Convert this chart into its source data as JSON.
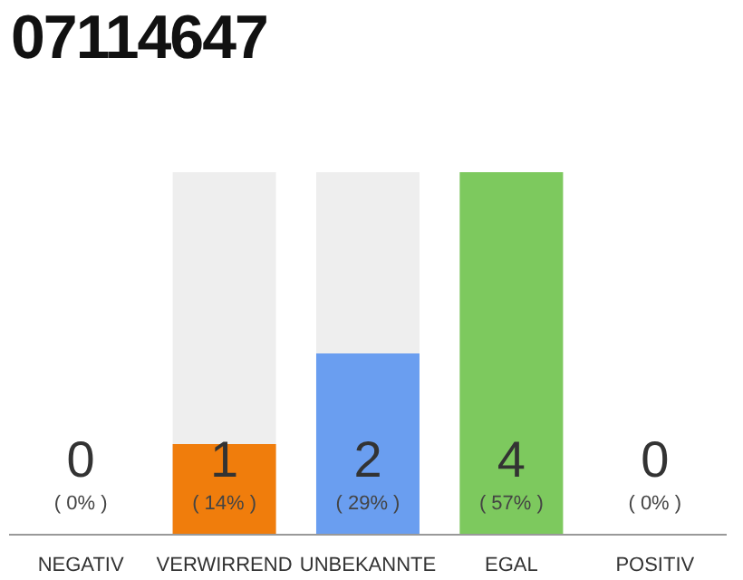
{
  "chart_data": {
    "type": "bar",
    "title": "07114647",
    "categories": [
      "NEGATIV",
      "VERWIRREND",
      "UNBEKANNTE",
      "EGAL",
      "POSITIV"
    ],
    "values": [
      0,
      1,
      2,
      4,
      0
    ],
    "colors": [
      "#f07d0c",
      "#f07d0c",
      "#6a9ef0",
      "#7dc95e",
      "#7dc95e"
    ],
    "data_labels": true,
    "annotations": [
      "( 0% )",
      "( 14% )",
      "( 29% )",
      "( 57% )",
      "( 0% )"
    ],
    "tick_labels": "x",
    "grid": false,
    "legend": false
  }
}
